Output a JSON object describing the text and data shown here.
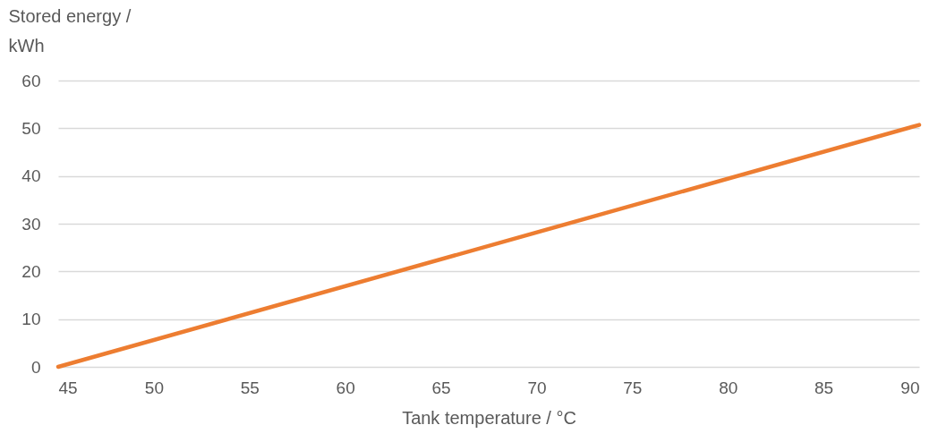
{
  "chart_data": {
    "type": "line",
    "xlabel": "Tank temperature / °C",
    "ylabel": "Stored energy / kWh",
    "x": [
      45,
      90
    ],
    "series": [
      {
        "color": "#ed7d31",
        "values": [
          0,
          50.7
        ]
      }
    ],
    "xlim": [
      45,
      90
    ],
    "xticks": [
      45,
      50,
      55,
      60,
      65,
      70,
      75,
      80,
      85,
      90
    ],
    "ylim": [
      0,
      60
    ],
    "yticks": [
      0,
      10,
      20,
      30,
      40,
      50,
      60
    ],
    "grid": "y",
    "marker": "none",
    "line_style": "solid"
  }
}
